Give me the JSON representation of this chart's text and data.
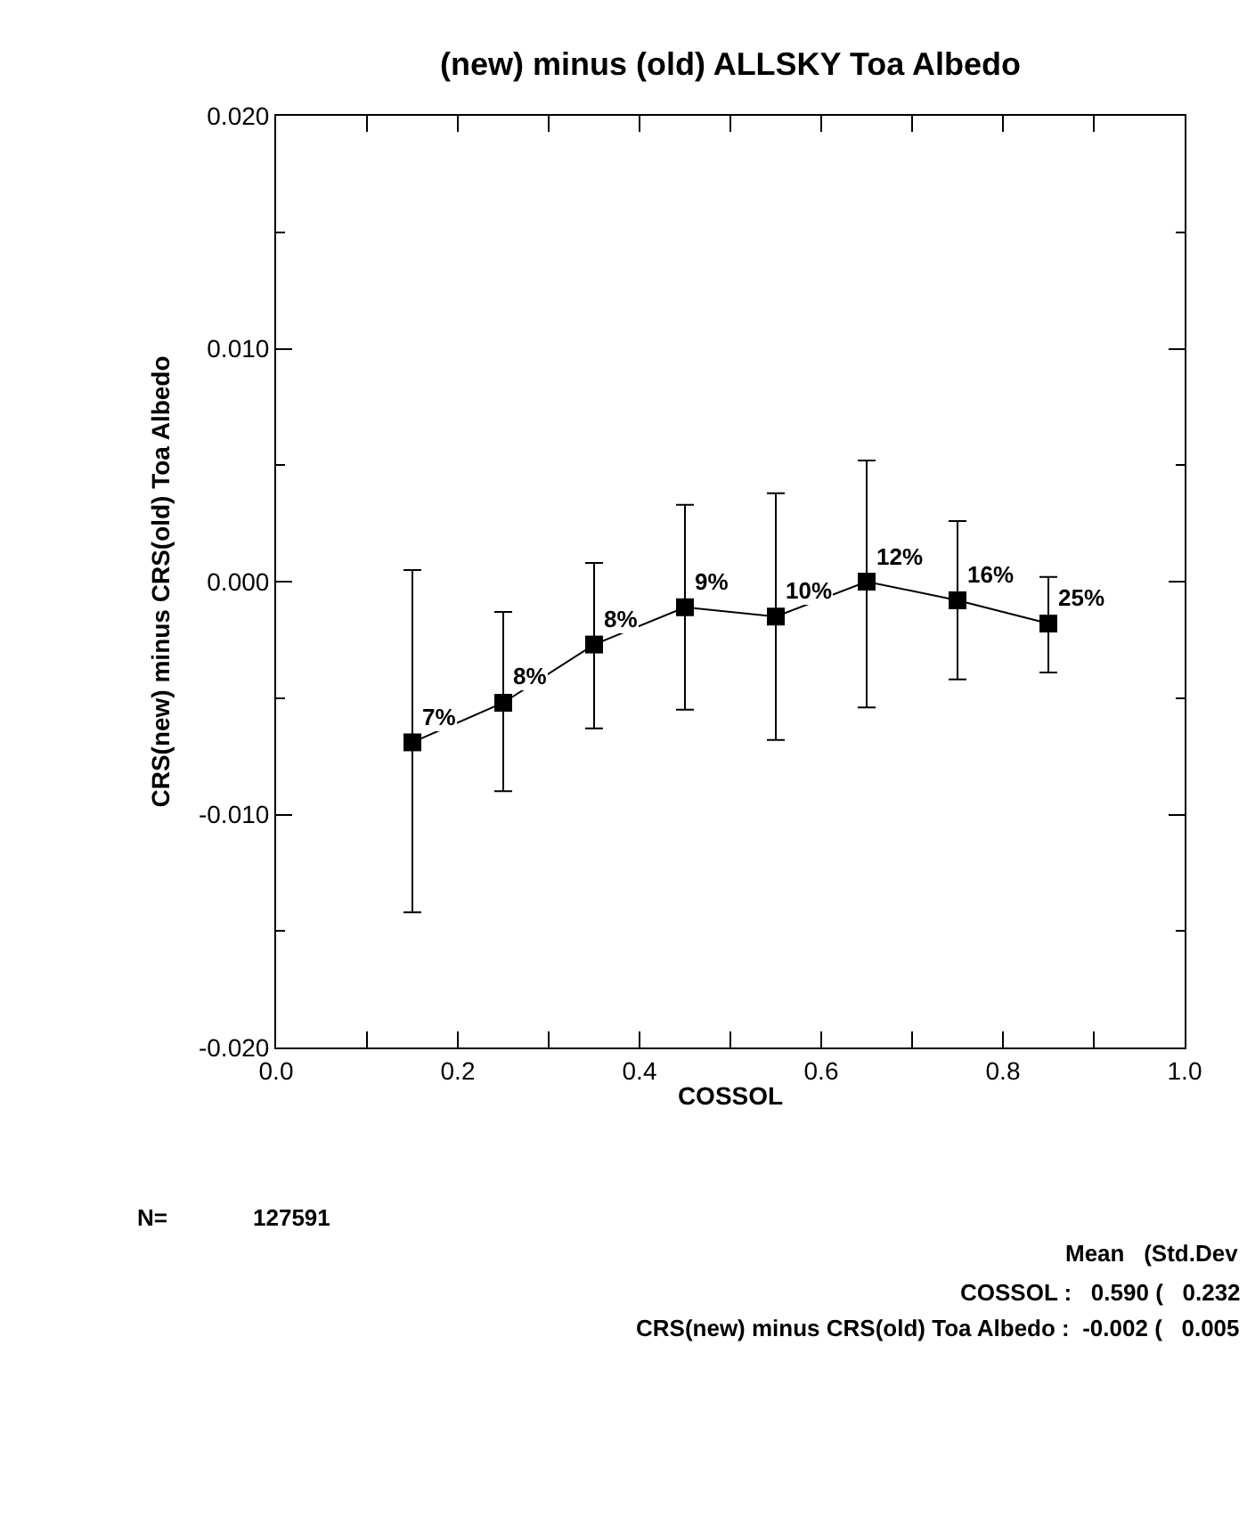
{
  "chart_data": {
    "type": "line",
    "title": "(new) minus (old) ALLSKY Toa Albedo",
    "xlabel": "COSSOL",
    "ylabel": "CRS(new) minus CRS(old) Toa Albedo",
    "x": [
      0.15,
      0.25,
      0.35,
      0.45,
      0.55,
      0.65,
      0.75,
      0.85
    ],
    "series": [
      {
        "color": "#000000",
        "values": [
          -0.0069,
          -0.0052,
          -0.0027,
          -0.0011,
          -0.0015,
          0.0,
          -0.0008,
          -0.0018
        ],
        "errors": [
          [
            -0.0142,
            0.0005
          ],
          [
            -0.009,
            -0.0013
          ],
          [
            -0.0063,
            0.0008
          ],
          [
            -0.0055,
            0.0033
          ],
          [
            -0.0068,
            0.0038
          ],
          [
            -0.0054,
            0.0052
          ],
          [
            -0.0042,
            0.0026
          ],
          [
            -0.0039,
            0.0002
          ]
        ]
      }
    ],
    "marker": "square",
    "line_style": "solid",
    "xlim": [
      0.0,
      1.0
    ],
    "xticks": [
      {
        "value": 0,
        "label": "0.0"
      },
      0.2,
      0.4,
      0.6,
      0.8,
      {
        "value": 1,
        "label": "1.0"
      }
    ],
    "ylim": [
      -0.02,
      0.02
    ],
    "yticks": [
      {
        "value": -0.02,
        "label": "-0.020"
      },
      {
        "value": -0.01,
        "label": "-0.010"
      },
      {
        "value": 0,
        "label": "0.000"
      },
      {
        "value": 0.01,
        "label": "0.010"
      },
      {
        "value": 0.02,
        "label": "0.020"
      }
    ],
    "grid": false,
    "annotations": [
      {
        "text": "7%",
        "x": 0.15,
        "y": -0.0069
      },
      {
        "text": "8%",
        "x": 0.25,
        "y": -0.0052
      },
      {
        "text": "8%",
        "x": 0.35,
        "y": -0.0027
      },
      {
        "text": "9%",
        "x": 0.45,
        "y": -0.0011
      },
      {
        "text": "10%",
        "x": 0.55,
        "y": -0.0015
      },
      {
        "text": "12%",
        "x": 0.65,
        "y": 0.0
      },
      {
        "text": "16%",
        "x": 0.75,
        "y": -0.0008
      },
      {
        "text": "25%",
        "x": 0.85,
        "y": -0.0018
      },
      "N=",
      "127591",
      "Mean   (Std.Dev",
      "COSSOL :   0.590 (   0.232",
      "CRS(new) minus CRS(old) Toa Albedo :  -0.002 (   0.005"
    ]
  }
}
